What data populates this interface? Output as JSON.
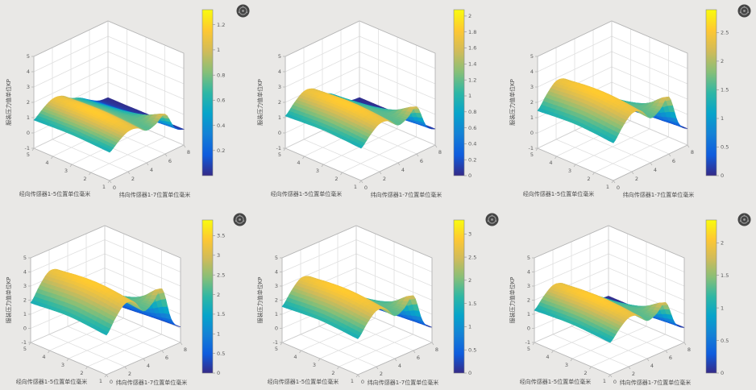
{
  "figure": {
    "background": "#e9e8e6",
    "panel_background": "#ffffff",
    "grid": {
      "rows": 2,
      "cols": 3
    },
    "gridline_color": "#e0e0e0",
    "axis_edge_color": "#b5b5b5",
    "tick_text_color": "#5b5b5b",
    "label_text_color": "#4f4f4f"
  },
  "colormap": {
    "name": "parula",
    "stops": [
      "#352a87",
      "#0f5cdd",
      "#1481d6",
      "#06a4ca",
      "#2eb7a4",
      "#87bf77",
      "#d1bb59",
      "#fec832",
      "#f9fb0e"
    ]
  },
  "watermark": {
    "icon": "circular-watermark-logo",
    "fill": "#454545",
    "ring": "#9b9b9b"
  },
  "shape_grid": {
    "note": "normalized pressure surface shape, rows y=1..5, cols x=0..8",
    "values": [
      [
        0.42,
        0.64,
        0.8,
        0.76,
        0.55,
        0.62,
        0.78,
        0.22,
        0.03
      ],
      [
        0.45,
        0.67,
        0.84,
        0.8,
        0.58,
        0.55,
        0.5,
        0.15,
        0.02
      ],
      [
        0.47,
        0.69,
        0.86,
        0.82,
        0.6,
        0.5,
        0.36,
        0.1,
        0.02
      ],
      [
        0.45,
        0.67,
        0.84,
        0.8,
        0.58,
        0.46,
        0.28,
        0.07,
        0.01
      ],
      [
        0.42,
        0.64,
        0.8,
        0.76,
        0.55,
        0.42,
        0.22,
        0.05,
        0.01
      ]
    ]
  },
  "chart_data": [
    {
      "id": "pressure-surface-1",
      "type": "surface",
      "zlabel": "服装压力值单位KP",
      "xlabel": "纬向传感器1-7位置单位毫米",
      "ylabel": "经向传感器1-5位置单位毫米",
      "x_range": [
        0,
        8
      ],
      "y_range": [
        1,
        5
      ],
      "z_range": [
        -1,
        5
      ],
      "x_ticks": [
        0,
        2,
        4,
        6,
        8
      ],
      "y_ticks": [
        1,
        2,
        3,
        4,
        5
      ],
      "z_ticks": [
        -1,
        0,
        1,
        2,
        3,
        4,
        5
      ],
      "peak_z_kpa": 2.0,
      "colorbar": {
        "min": 0,
        "max": 1.32,
        "ticks": [
          0.2,
          0.4,
          0.6,
          0.8,
          1,
          1.2
        ]
      },
      "watermark": true
    },
    {
      "id": "pressure-surface-2",
      "type": "surface",
      "zlabel": "服装压力值单位KP",
      "xlabel": "纬向传感器1-7位置单位毫米",
      "ylabel": "经向传感器1-5位置单位毫米",
      "x_range": [
        0,
        8
      ],
      "y_range": [
        1,
        5
      ],
      "z_range": [
        -1,
        5
      ],
      "x_ticks": [
        0,
        2,
        4,
        6,
        8
      ],
      "y_ticks": [
        1,
        2,
        3,
        4,
        5
      ],
      "z_ticks": [
        -1,
        0,
        1,
        2,
        3,
        4,
        5
      ],
      "peak_z_kpa": 2.6,
      "colorbar": {
        "min": 0,
        "max": 2.08,
        "ticks": [
          0,
          0.2,
          0.4,
          0.6,
          0.8,
          1,
          1.2,
          1.4,
          1.6,
          1.8,
          2
        ]
      },
      "watermark": false
    },
    {
      "id": "pressure-surface-3",
      "type": "surface",
      "zlabel": "服装压力值单位KP",
      "xlabel": "纬向传感器1-7位置单位毫米",
      "ylabel": "经向传感器1-5位置单位毫米",
      "x_range": [
        0,
        8
      ],
      "y_range": [
        1,
        5
      ],
      "z_range": [
        -1,
        5
      ],
      "x_ticks": [
        0,
        2,
        4,
        6,
        8
      ],
      "y_ticks": [
        1,
        2,
        3,
        4,
        5
      ],
      "z_ticks": [
        -1,
        0,
        1,
        2,
        3,
        4,
        5
      ],
      "peak_z_kpa": 3.4,
      "colorbar": {
        "min": 0,
        "max": 2.9,
        "ticks": [
          0,
          0.5,
          1,
          1.5,
          2,
          2.5
        ]
      },
      "watermark": true
    },
    {
      "id": "pressure-surface-4",
      "type": "surface",
      "zlabel": "服装压力值单位KP",
      "xlabel": "纬向传感器1-7位置单位毫米",
      "ylabel": "经向传感器1-5位置单位毫米",
      "x_range": [
        0,
        8
      ],
      "y_range": [
        1,
        5
      ],
      "z_range": [
        -1,
        5
      ],
      "x_ticks": [
        0,
        2,
        4,
        6,
        8
      ],
      "y_ticks": [
        1,
        2,
        3,
        4,
        5
      ],
      "z_ticks": [
        -1,
        0,
        1,
        2,
        3,
        4,
        5
      ],
      "peak_z_kpa": 4.2,
      "colorbar": {
        "min": 0,
        "max": 3.9,
        "ticks": [
          0,
          0.5,
          1,
          1.5,
          2,
          2.5,
          3,
          3.5
        ]
      },
      "watermark": true
    },
    {
      "id": "pressure-surface-5",
      "type": "surface",
      "zlabel": "服装压力值单位KP",
      "xlabel": "纬向传感器1-7位置单位毫米",
      "ylabel": "经向传感器1-5位置单位毫米",
      "x_range": [
        0,
        8
      ],
      "y_range": [
        1,
        5
      ],
      "z_range": [
        -1,
        5
      ],
      "x_ticks": [
        0,
        2,
        4,
        6,
        8
      ],
      "y_ticks": [
        1,
        2,
        3,
        4,
        5
      ],
      "z_ticks": [
        -1,
        0,
        1,
        2,
        3,
        4,
        5
      ],
      "peak_z_kpa": 3.6,
      "colorbar": {
        "min": 0,
        "max": 3.3,
        "ticks": [
          0,
          0.5,
          1,
          1.5,
          2,
          2.5,
          3
        ]
      },
      "watermark": true
    },
    {
      "id": "pressure-surface-6",
      "type": "surface",
      "zlabel": "服装压力值单位KP",
      "xlabel": "纬向传感器1-7位置单位毫米",
      "ylabel": "经向传感器1-5位置单位毫米",
      "x_range": [
        0,
        8
      ],
      "y_range": [
        1,
        5
      ],
      "z_range": [
        -1,
        5
      ],
      "x_ticks": [
        0,
        2,
        4,
        6,
        8
      ],
      "y_ticks": [
        1,
        2,
        3,
        4,
        5
      ],
      "z_ticks": [
        -1,
        0,
        1,
        2,
        3,
        4,
        5
      ],
      "peak_z_kpa": 3.0,
      "colorbar": {
        "min": 0,
        "max": 2.35,
        "ticks": [
          0,
          0.5,
          1,
          1.5,
          2
        ]
      },
      "watermark": true
    }
  ]
}
